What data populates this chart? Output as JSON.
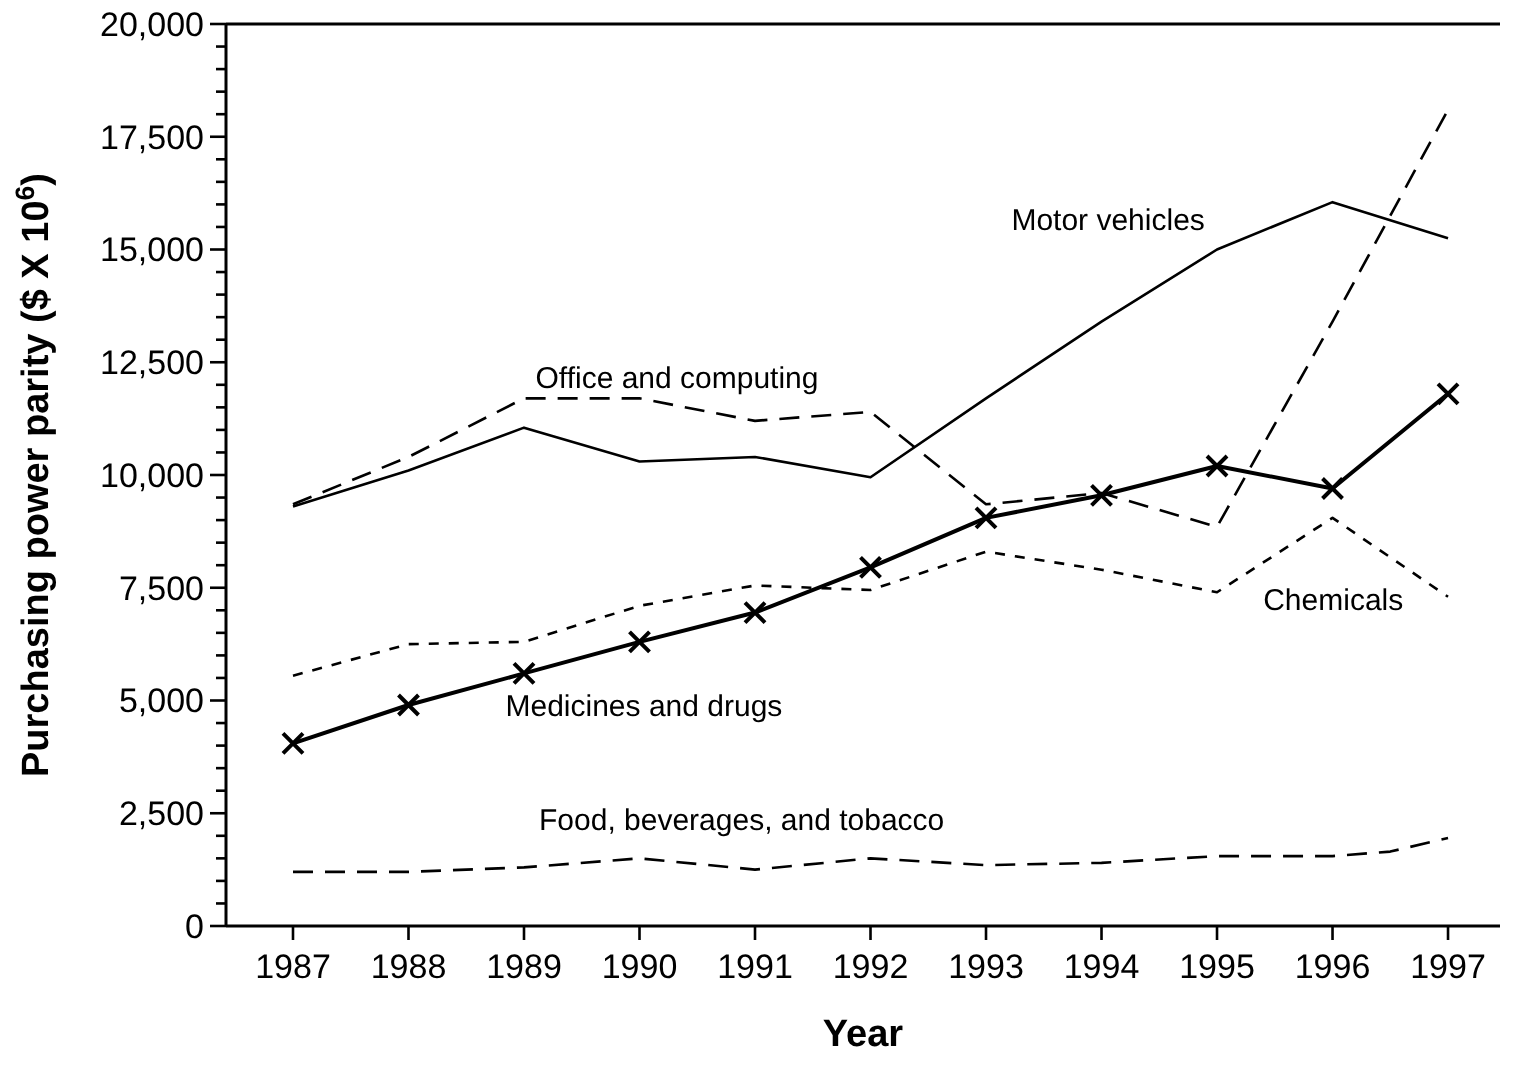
{
  "chart_data": {
    "type": "line",
    "xlabel": "Year",
    "ylabel": "Purchasing power parity ($ X 10$^{6}$)",
    "xlim": [
      1986.42,
      1997.45
    ],
    "xticks": [
      1987,
      1988,
      1989,
      1990,
      1991,
      1992,
      1993,
      1994,
      1995,
      1996,
      1997
    ],
    "ylim": [
      0,
      20000
    ],
    "yticks": [
      0,
      {
        "value": 500,
        "label": null
      },
      {
        "value": 1000,
        "label": null
      },
      {
        "value": 1500,
        "label": null
      },
      {
        "value": 2000,
        "label": null
      },
      {
        "value": 2500,
        "label": "2,500"
      },
      {
        "value": 3000,
        "label": null
      },
      {
        "value": 3500,
        "label": null
      },
      {
        "value": 4000,
        "label": null
      },
      {
        "value": 4500,
        "label": null
      },
      {
        "value": 5000,
        "label": "5,000"
      },
      {
        "value": 5500,
        "label": null
      },
      {
        "value": 6000,
        "label": null
      },
      {
        "value": 6500,
        "label": null
      },
      {
        "value": 7000,
        "label": null
      },
      {
        "value": 7500,
        "label": "7,500"
      },
      {
        "value": 8000,
        "label": null
      },
      {
        "value": 8500,
        "label": null
      },
      {
        "value": 9000,
        "label": null
      },
      {
        "value": 9500,
        "label": null
      },
      {
        "value": 10000,
        "label": "10,000"
      },
      {
        "value": 10500,
        "label": null
      },
      {
        "value": 11000,
        "label": null
      },
      {
        "value": 11500,
        "label": null
      },
      {
        "value": 12000,
        "label": null
      },
      {
        "value": 12500,
        "label": "12,500"
      },
      {
        "value": 13000,
        "label": null
      },
      {
        "value": 13500,
        "label": null
      },
      {
        "value": 14000,
        "label": null
      },
      {
        "value": 14500,
        "label": null
      },
      {
        "value": 15000,
        "label": "15,000"
      },
      {
        "value": 15500,
        "label": null
      },
      {
        "value": 16000,
        "label": null
      },
      {
        "value": 16500,
        "label": null
      },
      {
        "value": 17000,
        "label": null
      },
      {
        "value": 17500,
        "label": "17,500"
      },
      {
        "value": 18000,
        "label": null
      },
      {
        "value": 18500,
        "label": null
      },
      {
        "value": 19000,
        "label": null
      },
      {
        "value": 19500,
        "label": null
      },
      {
        "value": 20000,
        "label": "20,000"
      }
    ],
    "x": [
      1987,
      1988,
      1989,
      1990,
      1991,
      1992,
      1993,
      1994,
      1995,
      1996,
      1997
    ],
    "grid": false,
    "series": [
      {
        "name": "Motor vehicles",
        "color": "#000000",
        "line_style": "solid",
        "marker": "none",
        "values": [
          9300,
          10100,
          11050,
          10300,
          10400,
          9950,
          11700,
          13400,
          15000,
          16050,
          15250
        ]
      },
      {
        "name": "Office and computing",
        "color": "#000000",
        "line_style": "dashed",
        "marker": "none",
        "values": [
          9350,
          10400,
          11700,
          11700,
          11200,
          11400,
          9350,
          9600,
          8850,
          13400,
          18100
        ]
      },
      {
        "name": "Chemicals",
        "color": "#000000",
        "line_style": "dotted",
        "marker": "none",
        "values": [
          5550,
          6250,
          6300,
          7100,
          7550,
          7450,
          8300,
          7900,
          7400,
          9050,
          7300
        ]
      },
      {
        "name": "Medicines and drugs",
        "color": "#000000",
        "line_style": "solid",
        "marker": "cross",
        "values": [
          4050,
          4900,
          5600,
          6300,
          6950,
          7950,
          9050,
          9550,
          10200,
          9700,
          11800
        ]
      },
      {
        "name": "Food, beverages, and tobacco",
        "color": "#000000",
        "line_style": "dashed",
        "marker": "none",
        "x": [
          1987,
          1988,
          1989,
          1990,
          1991,
          1992,
          1993,
          1994,
          1995,
          1996,
          1996.5,
          1997
        ],
        "values": [
          1200,
          1200,
          1300,
          1500,
          1250,
          1500,
          1350,
          1400,
          1550,
          1550,
          1650,
          1950
        ]
      }
    ]
  }
}
